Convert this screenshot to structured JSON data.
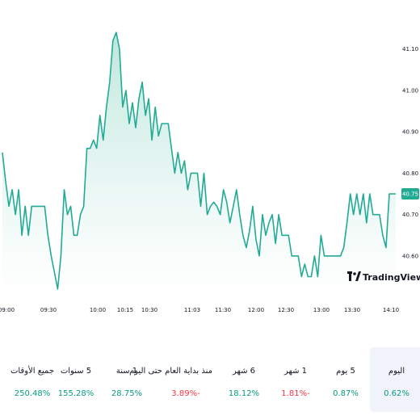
{
  "chart_data": {
    "type": "area",
    "x_ticks": [
      "09:00",
      "09:30",
      "10:00",
      "10:15",
      "10:30",
      "11:03",
      "11:30",
      "12:00",
      "12:30",
      "13:00",
      "13:30",
      "14:10"
    ],
    "y_ticks": [
      "41.10",
      "41.00",
      "40.90",
      "40.80",
      "40.70",
      "40.60"
    ],
    "ylim": [
      40.51,
      41.16
    ],
    "last_price": "40.75",
    "colors": {
      "line": "#22ab94",
      "fill_top": "#b7e4d9",
      "fill_bottom": "#ffffff",
      "badge": "#22ab94"
    },
    "grid": false,
    "series": [
      {
        "values": [
          40.85,
          40.78,
          40.72,
          40.76,
          40.7,
          40.76,
          40.65,
          40.72,
          40.65,
          40.72,
          40.72,
          40.72,
          40.72,
          40.72,
          40.65,
          40.6,
          40.56,
          40.52,
          40.6,
          40.76,
          40.7,
          40.72,
          40.65,
          40.65,
          40.7,
          40.72,
          40.86,
          40.86,
          40.88,
          40.86,
          40.94,
          40.88,
          40.96,
          41.02,
          41.12,
          41.14,
          41.1,
          40.96,
          41.0,
          40.92,
          40.97,
          40.91,
          40.98,
          41.02,
          40.94,
          40.98,
          40.88,
          40.96,
          40.89,
          40.92,
          40.92,
          40.92,
          40.86,
          40.8,
          40.85,
          40.8,
          40.83,
          40.76,
          40.8,
          40.8,
          40.8,
          40.72,
          40.8,
          40.7,
          40.72,
          40.73,
          40.72,
          40.7,
          40.76,
          40.73,
          40.68,
          40.72,
          40.76,
          40.7,
          40.65,
          40.62,
          40.66,
          40.72,
          40.64,
          40.6,
          40.7,
          40.65,
          40.68,
          40.7,
          40.63,
          40.7,
          40.65,
          40.65,
          40.65,
          40.6,
          40.6,
          40.6,
          40.55,
          40.58,
          40.55,
          40.55,
          40.6,
          40.55,
          40.65,
          40.6,
          40.6,
          40.6,
          40.6,
          40.6,
          40.6,
          40.62,
          40.68,
          40.75,
          40.7,
          40.75,
          40.7,
          40.75,
          40.68,
          40.75,
          40.7,
          40.7,
          40.7,
          40.65,
          40.62,
          40.75,
          40.75,
          40.75
        ]
      }
    ]
  },
  "watermark": "TradingView",
  "performance": [
    {
      "label": "اليوم",
      "value": "0.62%",
      "trend": "pos",
      "active": true
    },
    {
      "label": "5 يوم",
      "value": "0.87%",
      "trend": "pos",
      "active": false
    },
    {
      "label": "1 شهر",
      "value": "1.81%-",
      "trend": "neg",
      "active": false
    },
    {
      "label": "6 شهر",
      "value": "18.12%",
      "trend": "pos",
      "active": false
    },
    {
      "label": "منذ بداية العام حتى اليوم",
      "value": "3.89%-",
      "trend": "neg",
      "active": false
    },
    {
      "label": "1 سنة",
      "value": "28.75%",
      "trend": "pos",
      "active": false
    },
    {
      "label": "5 سنوات",
      "value": "155.28%",
      "trend": "pos",
      "active": false
    },
    {
      "label": "جميع الأوقات",
      "value": "250.48%",
      "trend": "pos",
      "active": false
    }
  ]
}
